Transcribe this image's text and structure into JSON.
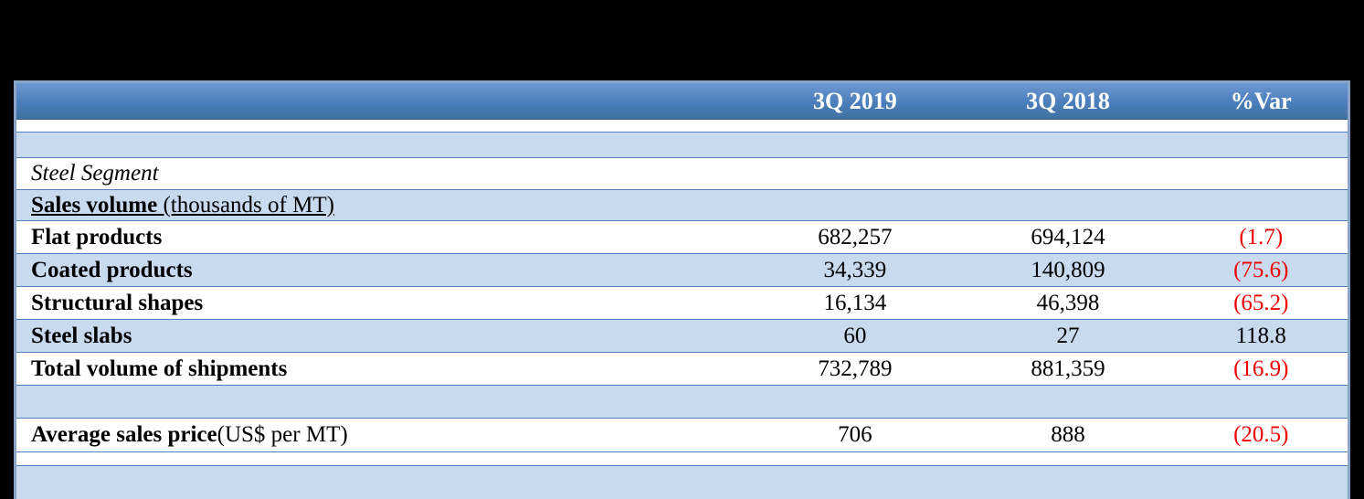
{
  "palette": {
    "background": "#000000",
    "header_blue": "#4a7ebb",
    "header_blue_light": "#6d98d0",
    "header_blue_dark": "#41719f",
    "light_blue": "#c9d9ee",
    "row_line": "#4f81bd",
    "border_outer": "#8ba3c7",
    "negative_red": "#ee0000",
    "header_text": "#ffffff",
    "body_text": "#000000"
  },
  "table": {
    "header": {
      "col_label": "",
      "col_2019": "3Q 2019",
      "col_2018": "3Q 2018",
      "col_var": "%Var"
    },
    "steel_segment": {
      "label": "Steel Segment"
    },
    "sales_volume_header": {
      "label": "Sales volume",
      "note": " (thousands of MT)"
    },
    "flat_products": {
      "label": "Flat products",
      "q3_2019": "682,257",
      "q3_2018": "694,124",
      "pct_var": "(1.7)"
    },
    "coated_products": {
      "label": "Coated products",
      "q3_2019": "34,339",
      "q3_2018": "140,809",
      "pct_var": "(75.6)"
    },
    "structural_shapes": {
      "label": "Structural shapes",
      "q3_2019": "16,134",
      "q3_2018": "46,398",
      "pct_var": "(65.2)"
    },
    "steel_slabs": {
      "label": "Steel slabs",
      "q3_2019": "60",
      "q3_2018": "27",
      "pct_var": "118.8"
    },
    "total_volume": {
      "label": "Total volume of shipments",
      "q3_2019": "732,789",
      "q3_2018": "881,359",
      "pct_var": "(16.9)"
    },
    "avg_sales_price": {
      "label": "Average sales price",
      "note": " (US$ per MT)",
      "q3_2019": "706",
      "q3_2018": "888",
      "pct_var": "(20.5)"
    }
  }
}
